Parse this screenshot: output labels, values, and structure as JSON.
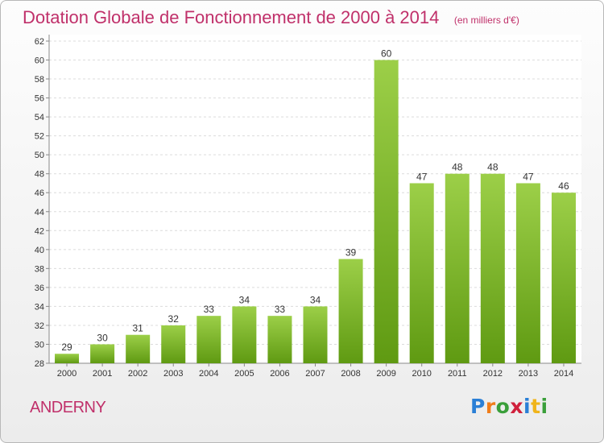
{
  "title": "Dotation Globale de Fonctionnement de 2000 à 2014",
  "subtitle": "(en milliers d'€)",
  "commune": "ANDERNY",
  "logo": {
    "text": "Proxiti",
    "colors": [
      "#2a7fd6",
      "#f07d1a",
      "#3a9f3a",
      "#d0203c",
      "#2a7fd6",
      "#f0b41a",
      "#3a9f3a"
    ]
  },
  "colors": {
    "bar_top": "#9ccf48",
    "bar_bottom": "#5f9a12",
    "accent": "#c0306a"
  },
  "chart_data": {
    "type": "bar",
    "categories": [
      "2000",
      "2001",
      "2002",
      "2003",
      "2004",
      "2005",
      "2006",
      "2007",
      "2008",
      "2009",
      "2010",
      "2011",
      "2012",
      "2013",
      "2014"
    ],
    "values": [
      29,
      30,
      31,
      32,
      33,
      34,
      33,
      34,
      39,
      60,
      47,
      48,
      48,
      47,
      46
    ],
    "ylim": [
      28,
      62
    ],
    "yticks": [
      28,
      30,
      32,
      34,
      36,
      38,
      40,
      42,
      44,
      46,
      48,
      50,
      52,
      54,
      56,
      58,
      60,
      62
    ],
    "grid": true,
    "data_labels": true
  }
}
